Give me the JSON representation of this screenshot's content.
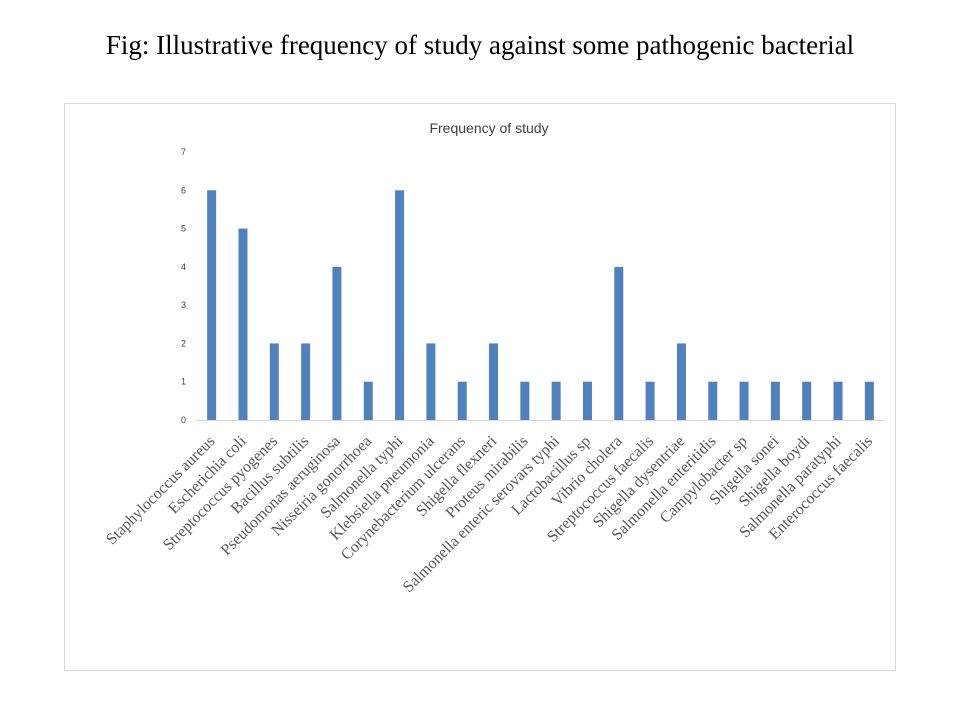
{
  "slide": {
    "title": "Fig: Illustrative frequency of study against some pathogenic bacterial"
  },
  "chart_data": {
    "type": "bar",
    "title": "Frequency of study",
    "xlabel": "",
    "ylabel": "",
    "ylim": [
      0,
      7
    ],
    "yticks": [
      "0",
      "1",
      "2",
      "3",
      "4",
      "5",
      "6",
      "7"
    ],
    "grid": false,
    "legend": "none",
    "bar_color": "#4f81bd",
    "categories": [
      "Staphylococcus aureus",
      "Escherichia coli",
      "Streptococcus pyogenes",
      "Bacillus subtilis",
      "Pseudomonas aeruginosa",
      "Nisseiria gonorrhoea",
      "Salmonella typhi",
      "Klebsiella pneumonia",
      "Corynebacterium ulcerans",
      "Shigella flexneri",
      "Proteus mirabilis",
      "Salmonella enteric serovars typhi",
      "Lactobacillus sp",
      "Vibrio cholera",
      "Streptococcus faecalis",
      "Shigella dysentriae",
      "Salmonella enteritidis",
      "Campylobacter sp",
      "Shigella sonei",
      "Shigella boydi",
      "Salmonella paratyphi",
      "Enterococcus faecalis"
    ],
    "values": [
      6,
      5,
      2,
      2,
      4,
      1,
      6,
      2,
      1,
      2,
      1,
      1,
      1,
      4,
      1,
      2,
      1,
      1,
      1,
      1,
      1,
      1
    ]
  }
}
